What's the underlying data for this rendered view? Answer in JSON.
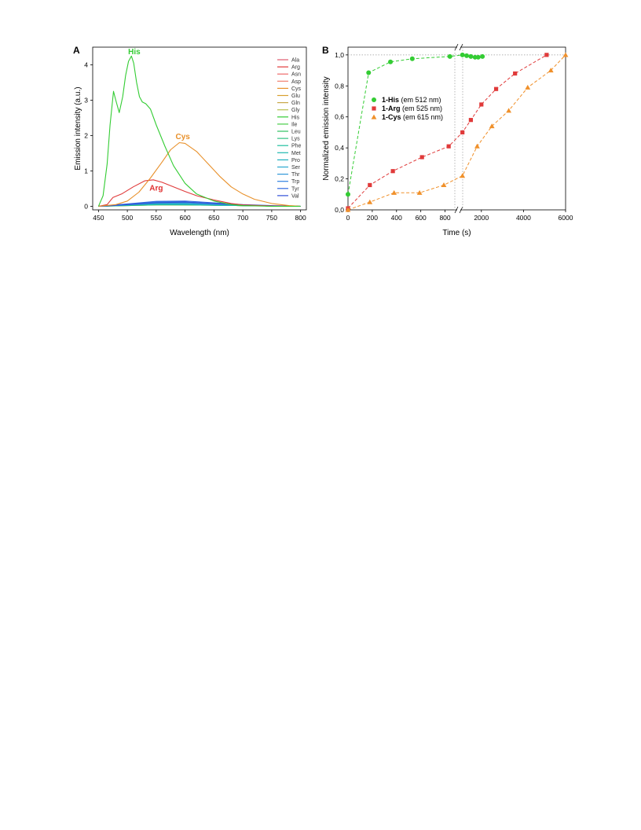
{
  "chart_data": [
    {
      "panel": "A",
      "type": "line",
      "xlabel": "Wavelength (nm)",
      "ylabel": "Emission intensity (a.u.)",
      "xlim": [
        440,
        810
      ],
      "ylim": [
        -0.1,
        4.5
      ],
      "xticks": [
        450,
        500,
        550,
        600,
        650,
        700,
        750,
        800
      ],
      "yticks": [
        0,
        1,
        2,
        3,
        4
      ],
      "legend_position": "top-right",
      "annotations": [
        {
          "text": "His",
          "x": 512,
          "y": 4.3,
          "color": "#33cc33"
        },
        {
          "text": "Cys",
          "x": 596,
          "y": 1.9,
          "color": "#e8902a"
        },
        {
          "text": "Arg",
          "x": 550,
          "y": 0.45,
          "color": "#e03030"
        }
      ],
      "series": [
        {
          "name": "Ala",
          "color": "#e05a6e",
          "x": [
            450,
            500,
            550,
            600,
            650,
            700,
            750,
            800
          ],
          "y": [
            0,
            0.03,
            0.06,
            0.05,
            0.04,
            0.02,
            0.01,
            0
          ]
        },
        {
          "name": "Arg",
          "color": "#e03a3a",
          "x": [
            450,
            465,
            475,
            490,
            510,
            530,
            545,
            560,
            580,
            600,
            620,
            650,
            680,
            700,
            750,
            800
          ],
          "y": [
            0,
            0.05,
            0.25,
            0.35,
            0.55,
            0.72,
            0.75,
            0.68,
            0.55,
            0.42,
            0.3,
            0.18,
            0.08,
            0.04,
            0.01,
            0
          ]
        },
        {
          "name": "Asn",
          "color": "#ee6a6a",
          "x": [
            450,
            500,
            550,
            600,
            650,
            700,
            750,
            800
          ],
          "y": [
            0,
            0.04,
            0.07,
            0.06,
            0.04,
            0.02,
            0.01,
            0
          ]
        },
        {
          "name": "Asp",
          "color": "#f08070",
          "x": [
            450,
            500,
            550,
            600,
            650,
            700,
            750,
            800
          ],
          "y": [
            0,
            0.03,
            0.05,
            0.05,
            0.03,
            0.02,
            0.01,
            0
          ]
        },
        {
          "name": "Cys",
          "color": "#e8902a",
          "x": [
            450,
            480,
            500,
            520,
            540,
            560,
            575,
            590,
            600,
            620,
            640,
            660,
            680,
            700,
            720,
            750,
            780,
            800
          ],
          "y": [
            0,
            0.05,
            0.15,
            0.4,
            0.8,
            1.25,
            1.6,
            1.8,
            1.78,
            1.55,
            1.2,
            0.85,
            0.55,
            0.35,
            0.2,
            0.08,
            0.02,
            0
          ]
        },
        {
          "name": "Glu",
          "color": "#d8a030",
          "x": [
            450,
            500,
            550,
            600,
            650,
            700,
            750,
            800
          ],
          "y": [
            0,
            0.03,
            0.05,
            0.05,
            0.04,
            0.02,
            0.01,
            0
          ]
        },
        {
          "name": "Gln",
          "color": "#c8a848",
          "x": [
            450,
            500,
            550,
            600,
            650,
            700,
            750,
            800
          ],
          "y": [
            0,
            0.02,
            0.04,
            0.04,
            0.03,
            0.02,
            0.01,
            0
          ]
        },
        {
          "name": "Gly",
          "color": "#b8c050",
          "x": [
            450,
            500,
            550,
            600,
            650,
            700,
            750,
            800
          ],
          "y": [
            0,
            0.02,
            0.04,
            0.04,
            0.03,
            0.02,
            0.01,
            0
          ]
        },
        {
          "name": "His",
          "color": "#33cc33",
          "x": [
            450,
            458,
            465,
            470,
            476,
            480,
            486,
            492,
            497,
            502,
            507,
            511,
            516,
            521,
            526,
            532,
            540,
            550,
            565,
            580,
            600,
            620,
            650,
            680,
            700,
            750,
            800
          ],
          "y": [
            0,
            0.3,
            1.2,
            2.3,
            3.25,
            3.0,
            2.65,
            3.1,
            3.7,
            4.1,
            4.25,
            4.05,
            3.5,
            3.1,
            2.95,
            2.9,
            2.75,
            2.3,
            1.7,
            1.15,
            0.65,
            0.35,
            0.15,
            0.05,
            0.02,
            0,
            0
          ]
        },
        {
          "name": "Ile",
          "color": "#48cc48",
          "x": [
            450,
            500,
            550,
            600,
            650,
            700,
            750,
            800
          ],
          "y": [
            0,
            0.03,
            0.05,
            0.04,
            0.03,
            0.02,
            0.01,
            0
          ]
        },
        {
          "name": "Leu",
          "color": "#30c060",
          "x": [
            450,
            500,
            550,
            600,
            650,
            700,
            750,
            800
          ],
          "y": [
            0,
            0.02,
            0.04,
            0.04,
            0.03,
            0.02,
            0.01,
            0
          ]
        },
        {
          "name": "Lys",
          "color": "#30c080",
          "x": [
            450,
            500,
            550,
            600,
            650,
            700,
            750,
            800
          ],
          "y": [
            0,
            0.03,
            0.05,
            0.05,
            0.03,
            0.02,
            0.01,
            0
          ]
        },
        {
          "name": "Phe",
          "color": "#20c0a0",
          "x": [
            450,
            500,
            550,
            600,
            650,
            700,
            750,
            800
          ],
          "y": [
            0,
            0.03,
            0.05,
            0.05,
            0.03,
            0.02,
            0.01,
            0
          ]
        },
        {
          "name": "Met",
          "color": "#20b8b0",
          "x": [
            450,
            500,
            550,
            600,
            650,
            700,
            750,
            800
          ],
          "y": [
            0,
            0.03,
            0.06,
            0.05,
            0.04,
            0.02,
            0.01,
            0
          ]
        },
        {
          "name": "Pro",
          "color": "#20b0c0",
          "x": [
            450,
            500,
            550,
            600,
            650,
            700,
            750,
            800
          ],
          "y": [
            0,
            0.04,
            0.08,
            0.07,
            0.05,
            0.03,
            0.01,
            0
          ]
        },
        {
          "name": "Ser",
          "color": "#28a8d0",
          "x": [
            450,
            500,
            550,
            600,
            650,
            700,
            750,
            800
          ],
          "y": [
            0,
            0.04,
            0.08,
            0.08,
            0.05,
            0.03,
            0.01,
            0
          ]
        },
        {
          "name": "Thr",
          "color": "#3098d8",
          "x": [
            450,
            500,
            550,
            600,
            650,
            700,
            750,
            800
          ],
          "y": [
            0,
            0.05,
            0.1,
            0.1,
            0.06,
            0.03,
            0.01,
            0
          ]
        },
        {
          "name": "Trp",
          "color": "#2f80e0",
          "x": [
            450,
            500,
            550,
            600,
            650,
            700,
            750,
            800
          ],
          "y": [
            0,
            0.06,
            0.12,
            0.12,
            0.08,
            0.04,
            0.01,
            0
          ]
        },
        {
          "name": "Tyr",
          "color": "#3068e0",
          "x": [
            450,
            500,
            550,
            600,
            650,
            700,
            750,
            800
          ],
          "y": [
            0,
            0.07,
            0.14,
            0.15,
            0.1,
            0.05,
            0.02,
            0
          ]
        },
        {
          "name": "Val",
          "color": "#3050d8",
          "x": [
            450,
            500,
            550,
            600,
            650,
            700,
            750,
            800
          ],
          "y": [
            0,
            0.05,
            0.1,
            0.12,
            0.08,
            0.04,
            0.01,
            0
          ]
        }
      ]
    },
    {
      "panel": "B",
      "type": "scatter",
      "xlabel": "Time (s)",
      "ylabel": "Normalized emission intensity",
      "ylim": [
        0,
        1.05
      ],
      "yticks": [
        "0,0",
        "0,2",
        "0,4",
        "0,6",
        "0,8",
        "1,0"
      ],
      "x_segments": [
        {
          "range": [
            0,
            900
          ],
          "ticks": [
            0,
            200,
            400,
            600,
            800
          ]
        },
        {
          "range": [
            1000,
            6000
          ],
          "ticks": [
            2000,
            4000,
            6000
          ]
        }
      ],
      "axis_break": "//",
      "reference_line_y": 1.0,
      "legend_position": "top-left",
      "series": [
        {
          "name": "1-His",
          "suffix": " (em 512 nm)",
          "color": "#33cc33",
          "marker": "circle",
          "x": [
            0,
            170,
            350,
            530,
            840,
            1100,
            1300,
            1500,
            1700,
            1850,
            2050
          ],
          "y": [
            0.1,
            0.885,
            0.955,
            0.975,
            0.99,
            1.0,
            0.995,
            0.99,
            0.985,
            0.985,
            0.99
          ]
        },
        {
          "name": "1-Arg",
          "suffix": " (em 525 nm)",
          "color": "#e03a3a",
          "marker": "square",
          "x": [
            0,
            180,
            370,
            610,
            830,
            1100,
            1500,
            2000,
            2700,
            3600,
            5100
          ],
          "y": [
            0.01,
            0.16,
            0.25,
            0.34,
            0.41,
            0.5,
            0.58,
            0.68,
            0.78,
            0.88,
            1.0
          ]
        },
        {
          "name": "1-Cys",
          "suffix": " (em 615 nm)",
          "color": "#f0902a",
          "marker": "triangle",
          "x": [
            0,
            180,
            380,
            590,
            790,
            1100,
            1800,
            2500,
            3300,
            4200,
            5300,
            6000
          ],
          "y": [
            0.0,
            0.05,
            0.11,
            0.11,
            0.16,
            0.22,
            0.41,
            0.54,
            0.64,
            0.79,
            0.9,
            1.0
          ]
        }
      ]
    }
  ]
}
